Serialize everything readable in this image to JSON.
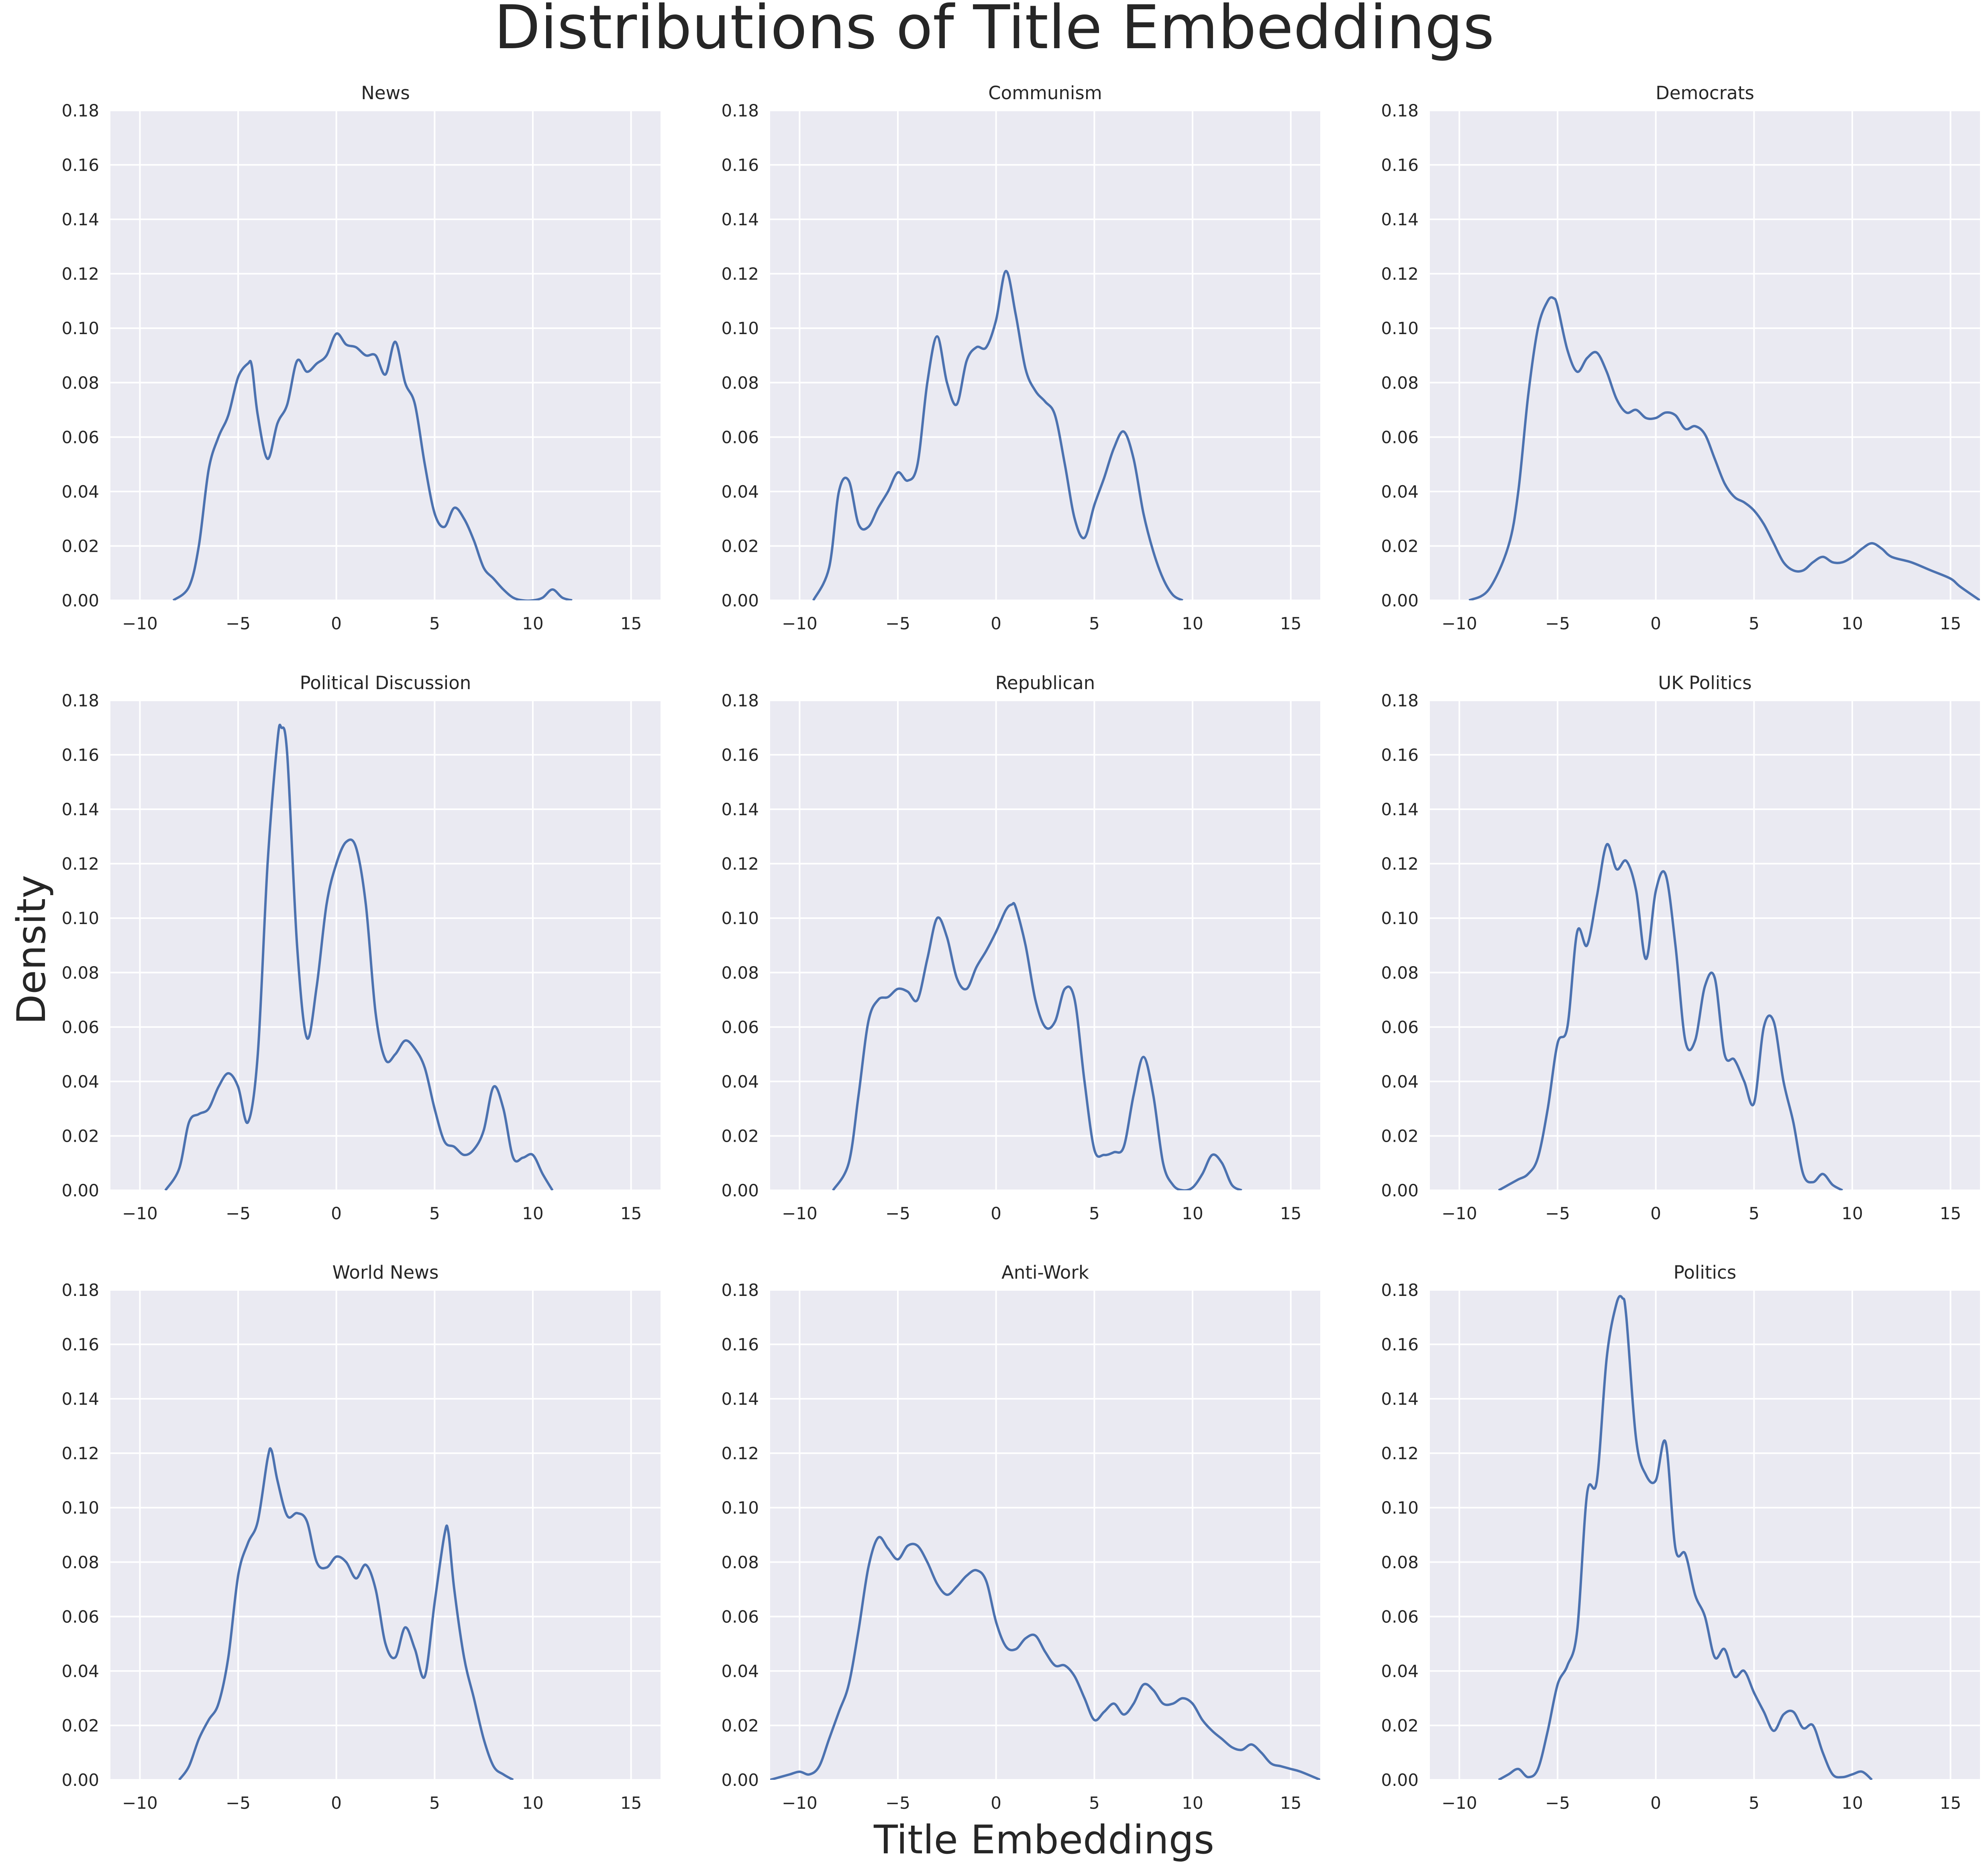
{
  "figure": {
    "title": "Distributions of Title Embeddings",
    "xlabel": "Title Embeddings",
    "ylabel": "Density"
  },
  "colors": {
    "line": "#4c72b0",
    "panel_bg": "#eaeaf2",
    "grid": "#ffffff",
    "text": "#262626"
  },
  "chart_data": [
    {
      "type": "line",
      "title": "News",
      "xlim": [
        -11.5,
        16.5
      ],
      "ylim": [
        0,
        0.18
      ],
      "xticks": [
        -10,
        -5,
        0,
        5,
        10,
        15
      ],
      "yticks": [
        0.0,
        0.02,
        0.04,
        0.06,
        0.08,
        0.1,
        0.12,
        0.14,
        0.16,
        0.18
      ],
      "grid": true,
      "x": [
        -8.3,
        -7.5,
        -7,
        -6.5,
        -6,
        -5.5,
        -5,
        -4.5,
        -4.3,
        -4,
        -3.5,
        -3,
        -2.5,
        -2,
        -1.5,
        -1,
        -0.5,
        0,
        0.5,
        1,
        1.5,
        2,
        2.5,
        3,
        3.5,
        4,
        4.5,
        5,
        5.5,
        6,
        6.5,
        7,
        7.5,
        8,
        8.5,
        9,
        9.5,
        10,
        10.5,
        11,
        11.5,
        12
      ],
      "y": [
        0.0,
        0.005,
        0.02,
        0.048,
        0.06,
        0.068,
        0.082,
        0.087,
        0.086,
        0.068,
        0.052,
        0.065,
        0.072,
        0.088,
        0.084,
        0.087,
        0.09,
        0.098,
        0.094,
        0.093,
        0.09,
        0.09,
        0.083,
        0.095,
        0.08,
        0.072,
        0.05,
        0.032,
        0.027,
        0.034,
        0.03,
        0.022,
        0.012,
        0.008,
        0.004,
        0.001,
        0.0,
        0.0,
        0.001,
        0.004,
        0.001,
        0.0
      ]
    },
    {
      "type": "line",
      "title": "Communism",
      "xlim": [
        -11.5,
        16.5
      ],
      "ylim": [
        0,
        0.18
      ],
      "xticks": [
        -10,
        -5,
        0,
        5,
        10,
        15
      ],
      "yticks": [
        0.0,
        0.02,
        0.04,
        0.06,
        0.08,
        0.1,
        0.12,
        0.14,
        0.16,
        0.18
      ],
      "grid": true,
      "x": [
        -9.3,
        -8.5,
        -8,
        -7.5,
        -7,
        -6.5,
        -6,
        -5.5,
        -5,
        -4.5,
        -4,
        -3.5,
        -3,
        -2.5,
        -2,
        -1.5,
        -1,
        -0.5,
        0,
        0.5,
        1,
        1.5,
        2,
        2.5,
        3,
        3.5,
        4,
        4.5,
        5,
        5.5,
        6,
        6.5,
        7,
        7.5,
        8,
        8.5,
        9,
        9.5
      ],
      "y": [
        0.0,
        0.012,
        0.04,
        0.044,
        0.028,
        0.027,
        0.034,
        0.04,
        0.047,
        0.044,
        0.05,
        0.08,
        0.097,
        0.08,
        0.072,
        0.088,
        0.093,
        0.093,
        0.103,
        0.121,
        0.105,
        0.085,
        0.077,
        0.073,
        0.068,
        0.05,
        0.03,
        0.023,
        0.035,
        0.045,
        0.056,
        0.062,
        0.052,
        0.032,
        0.018,
        0.008,
        0.002,
        0.0
      ]
    },
    {
      "type": "line",
      "title": "Democrats",
      "xlim": [
        -11.5,
        16.5
      ],
      "ylim": [
        0,
        0.18
      ],
      "xticks": [
        -10,
        -5,
        0,
        5,
        10,
        15
      ],
      "yticks": [
        0.0,
        0.02,
        0.04,
        0.06,
        0.08,
        0.1,
        0.12,
        0.14,
        0.16,
        0.18
      ],
      "grid": true,
      "x": [
        -9.5,
        -8.5,
        -7.5,
        -7,
        -6.5,
        -6,
        -5.5,
        -5.2,
        -5,
        -4.5,
        -4,
        -3.5,
        -3,
        -2.5,
        -2,
        -1.5,
        -1,
        -0.5,
        0,
        0.5,
        1,
        1.5,
        2,
        2.5,
        3,
        3.5,
        4,
        4.5,
        5,
        5.5,
        6,
        6.5,
        7,
        7.5,
        8,
        8.5,
        9,
        9.5,
        10,
        10.5,
        11,
        11.5,
        12,
        13,
        14,
        15,
        15.5,
        16.5
      ],
      "y": [
        0.0,
        0.004,
        0.02,
        0.04,
        0.075,
        0.1,
        0.11,
        0.111,
        0.108,
        0.092,
        0.084,
        0.089,
        0.091,
        0.084,
        0.074,
        0.069,
        0.07,
        0.067,
        0.067,
        0.069,
        0.068,
        0.063,
        0.064,
        0.061,
        0.052,
        0.043,
        0.038,
        0.036,
        0.033,
        0.028,
        0.021,
        0.014,
        0.011,
        0.011,
        0.014,
        0.016,
        0.014,
        0.014,
        0.016,
        0.019,
        0.021,
        0.019,
        0.016,
        0.014,
        0.011,
        0.008,
        0.005,
        0.0
      ]
    },
    {
      "type": "line",
      "title": "Political Discussion",
      "xlim": [
        -11.5,
        16.5
      ],
      "ylim": [
        0,
        0.18
      ],
      "xticks": [
        -10,
        -5,
        0,
        5,
        10,
        15
      ],
      "yticks": [
        0.0,
        0.02,
        0.04,
        0.06,
        0.08,
        0.1,
        0.12,
        0.14,
        0.16,
        0.18
      ],
      "grid": true,
      "x": [
        -8.7,
        -8,
        -7.5,
        -7,
        -6.5,
        -6,
        -5.5,
        -5,
        -4.5,
        -4,
        -3.5,
        -3,
        -2.8,
        -2.5,
        -2,
        -1.5,
        -1,
        -0.5,
        0,
        0.5,
        1,
        1.5,
        2,
        2.5,
        3,
        3.5,
        4,
        4.5,
        5,
        5.5,
        6,
        6.5,
        7,
        7.5,
        8,
        8.5,
        9,
        9.5,
        10,
        10.5,
        11
      ],
      "y": [
        0.0,
        0.008,
        0.025,
        0.028,
        0.03,
        0.038,
        0.043,
        0.038,
        0.025,
        0.05,
        0.12,
        0.165,
        0.17,
        0.16,
        0.09,
        0.056,
        0.075,
        0.105,
        0.12,
        0.128,
        0.126,
        0.105,
        0.065,
        0.048,
        0.05,
        0.055,
        0.052,
        0.045,
        0.03,
        0.018,
        0.016,
        0.013,
        0.015,
        0.022,
        0.038,
        0.03,
        0.012,
        0.012,
        0.013,
        0.006,
        0.0
      ]
    },
    {
      "type": "line",
      "title": "Republican",
      "xlim": [
        -11.5,
        16.5
      ],
      "ylim": [
        0,
        0.18
      ],
      "xticks": [
        -10,
        -5,
        0,
        5,
        10,
        15
      ],
      "yticks": [
        0.0,
        0.02,
        0.04,
        0.06,
        0.08,
        0.1,
        0.12,
        0.14,
        0.16,
        0.18
      ],
      "grid": true,
      "x": [
        -8.3,
        -7.5,
        -7,
        -6.5,
        -6,
        -5.5,
        -5,
        -4.5,
        -4,
        -3.5,
        -3,
        -2.5,
        -2,
        -1.5,
        -1,
        -0.5,
        0,
        0.5,
        0.8,
        1,
        1.5,
        2,
        2.5,
        3,
        3.5,
        4,
        4.5,
        5,
        5.5,
        6,
        6.5,
        7,
        7.5,
        8,
        8.5,
        9,
        9.5,
        10,
        10.5,
        11,
        11.5,
        12,
        12.5
      ],
      "y": [
        0.0,
        0.01,
        0.035,
        0.062,
        0.07,
        0.071,
        0.074,
        0.073,
        0.07,
        0.085,
        0.1,
        0.093,
        0.078,
        0.074,
        0.082,
        0.088,
        0.095,
        0.103,
        0.105,
        0.104,
        0.09,
        0.07,
        0.06,
        0.062,
        0.074,
        0.07,
        0.04,
        0.015,
        0.013,
        0.014,
        0.016,
        0.035,
        0.049,
        0.035,
        0.01,
        0.002,
        0.0,
        0.001,
        0.006,
        0.013,
        0.01,
        0.002,
        0.0
      ]
    },
    {
      "type": "line",
      "title": "UK Politics",
      "xlim": [
        -11.5,
        16.5
      ],
      "ylim": [
        0,
        0.18
      ],
      "xticks": [
        -10,
        -5,
        0,
        5,
        10,
        15
      ],
      "yticks": [
        0.0,
        0.02,
        0.04,
        0.06,
        0.08,
        0.1,
        0.12,
        0.14,
        0.16,
        0.18
      ],
      "grid": true,
      "x": [
        -8,
        -7.5,
        -7,
        -6.5,
        -6,
        -5.5,
        -5,
        -4.5,
        -4,
        -3.5,
        -3,
        -2.5,
        -2,
        -1.5,
        -1,
        -0.5,
        0,
        0.5,
        1,
        1.5,
        2,
        2.5,
        3,
        3.5,
        4,
        4.5,
        5,
        5.5,
        6,
        6.5,
        7,
        7.5,
        8,
        8.5,
        9,
        9.5
      ],
      "y": [
        0.0,
        0.002,
        0.004,
        0.006,
        0.012,
        0.03,
        0.054,
        0.06,
        0.095,
        0.09,
        0.108,
        0.127,
        0.118,
        0.121,
        0.11,
        0.085,
        0.11,
        0.116,
        0.09,
        0.055,
        0.055,
        0.075,
        0.078,
        0.05,
        0.048,
        0.04,
        0.032,
        0.06,
        0.062,
        0.04,
        0.025,
        0.006,
        0.003,
        0.006,
        0.002,
        0.0
      ]
    },
    {
      "type": "line",
      "title": "World News",
      "xlim": [
        -11.5,
        16.5
      ],
      "ylim": [
        0,
        0.18
      ],
      "xticks": [
        -10,
        -5,
        0,
        5,
        10,
        15
      ],
      "yticks": [
        0.0,
        0.02,
        0.04,
        0.06,
        0.08,
        0.1,
        0.12,
        0.14,
        0.16,
        0.18
      ],
      "grid": true,
      "x": [
        -8,
        -7.5,
        -7,
        -6.5,
        -6,
        -5.5,
        -5,
        -4.5,
        -4,
        -3.5,
        -3.3,
        -3,
        -2.5,
        -2,
        -1.5,
        -1,
        -0.5,
        0,
        0.5,
        1,
        1.5,
        2,
        2.5,
        3,
        3.5,
        4,
        4.5,
        5,
        5.5,
        5.7,
        6,
        6.5,
        7,
        7.5,
        8,
        8.5,
        9
      ],
      "y": [
        0.0,
        0.005,
        0.015,
        0.022,
        0.028,
        0.045,
        0.075,
        0.087,
        0.095,
        0.118,
        0.121,
        0.11,
        0.097,
        0.098,
        0.095,
        0.08,
        0.078,
        0.082,
        0.08,
        0.074,
        0.079,
        0.07,
        0.05,
        0.045,
        0.056,
        0.048,
        0.038,
        0.065,
        0.09,
        0.091,
        0.07,
        0.045,
        0.03,
        0.015,
        0.005,
        0.002,
        0.0
      ]
    },
    {
      "type": "line",
      "title": "Anti-Work",
      "xlim": [
        -11.5,
        16.5
      ],
      "ylim": [
        0,
        0.18
      ],
      "xticks": [
        -10,
        -5,
        0,
        5,
        10,
        15
      ],
      "yticks": [
        0.0,
        0.02,
        0.04,
        0.06,
        0.08,
        0.1,
        0.12,
        0.14,
        0.16,
        0.18
      ],
      "grid": true,
      "x": [
        -11.5,
        -11,
        -10.5,
        -10,
        -9.5,
        -9,
        -8.5,
        -8,
        -7.5,
        -7,
        -6.5,
        -6,
        -5.5,
        -5,
        -4.5,
        -4,
        -3.5,
        -3,
        -2.5,
        -2,
        -1.5,
        -1,
        -0.5,
        0,
        0.5,
        1,
        1.5,
        2,
        2.5,
        3,
        3.5,
        4,
        4.5,
        5,
        5.5,
        6,
        6.5,
        7,
        7.5,
        8,
        8.5,
        9,
        9.5,
        10,
        10.5,
        11,
        11.5,
        12,
        12.5,
        13,
        13.5,
        14,
        14.5,
        15,
        15.5,
        16.5
      ],
      "y": [
        0.0,
        0.001,
        0.002,
        0.003,
        0.002,
        0.005,
        0.015,
        0.025,
        0.035,
        0.055,
        0.078,
        0.089,
        0.085,
        0.081,
        0.086,
        0.086,
        0.08,
        0.072,
        0.068,
        0.071,
        0.075,
        0.077,
        0.073,
        0.058,
        0.049,
        0.048,
        0.052,
        0.053,
        0.047,
        0.042,
        0.042,
        0.038,
        0.03,
        0.022,
        0.025,
        0.028,
        0.024,
        0.028,
        0.035,
        0.033,
        0.028,
        0.028,
        0.03,
        0.028,
        0.022,
        0.018,
        0.015,
        0.012,
        0.011,
        0.013,
        0.01,
        0.006,
        0.005,
        0.004,
        0.003,
        0.0
      ]
    },
    {
      "type": "line",
      "title": "Politics",
      "xlim": [
        -11.5,
        16.5
      ],
      "ylim": [
        0,
        0.18
      ],
      "xticks": [
        -10,
        -5,
        0,
        5,
        10,
        15
      ],
      "yticks": [
        0.0,
        0.02,
        0.04,
        0.06,
        0.08,
        0.1,
        0.12,
        0.14,
        0.16,
        0.18
      ],
      "grid": true,
      "x": [
        -8,
        -7.5,
        -7,
        -6.5,
        -6,
        -5.5,
        -5,
        -4.5,
        -4,
        -3.5,
        -3,
        -2.5,
        -2,
        -1.7,
        -1.5,
        -1,
        -0.5,
        0,
        0.5,
        1,
        1.5,
        2,
        2.5,
        3,
        3.5,
        4,
        4.5,
        5,
        5.5,
        6,
        6.5,
        7,
        7.5,
        8,
        8.5,
        9,
        9.5,
        10,
        10.5,
        11
      ],
      "y": [
        0.0,
        0.002,
        0.004,
        0.001,
        0.004,
        0.018,
        0.035,
        0.042,
        0.055,
        0.105,
        0.11,
        0.155,
        0.175,
        0.177,
        0.17,
        0.125,
        0.112,
        0.11,
        0.124,
        0.085,
        0.083,
        0.068,
        0.06,
        0.045,
        0.048,
        0.038,
        0.04,
        0.032,
        0.025,
        0.018,
        0.024,
        0.025,
        0.019,
        0.02,
        0.01,
        0.002,
        0.001,
        0.002,
        0.003,
        0.0
      ]
    }
  ]
}
